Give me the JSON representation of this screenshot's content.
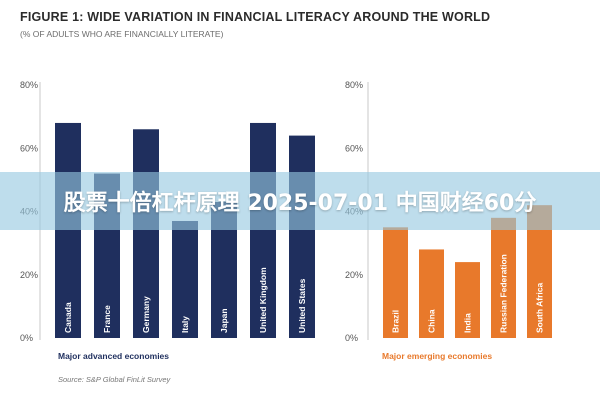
{
  "figure": {
    "title": "FIGURE 1: WIDE VARIATION IN FINANCIAL LITERACY AROUND THE WORLD",
    "subtitle": "(% OF ADULTS WHO ARE FINANCIALLY LITERATE)",
    "source": "Source: S&P Global FinLit Survey"
  },
  "banner": {
    "text": "股票十倍杠杆原理 2025-07-01 中国财经60分"
  },
  "colors": {
    "advanced": "#1f2f5e",
    "emerging": "#e8792b",
    "banner": "#96c8e1"
  },
  "chart_data": [
    {
      "type": "bar",
      "group_label": "Major advanced economies",
      "categories": [
        "Canada",
        "France",
        "Germany",
        "Italy",
        "Japan",
        "United Kingdom",
        "United States"
      ],
      "values": [
        68,
        52,
        66,
        37,
        43,
        68,
        64
      ],
      "ylim": [
        0,
        80
      ],
      "yticks": [
        "0%",
        "20%",
        "40%",
        "60%",
        "80%"
      ],
      "grid": false,
      "color": "#1f2f5e"
    },
    {
      "type": "bar",
      "group_label": "Major emerging economies",
      "categories": [
        "Brazil",
        "China",
        "India",
        "Russian Federation",
        "South Africa"
      ],
      "values": [
        35,
        28,
        24,
        38,
        42
      ],
      "ylim": [
        0,
        80
      ],
      "yticks": [
        "0%",
        "20%",
        "40%",
        "60%",
        "80%"
      ],
      "grid": false,
      "color": "#e8792b"
    }
  ]
}
